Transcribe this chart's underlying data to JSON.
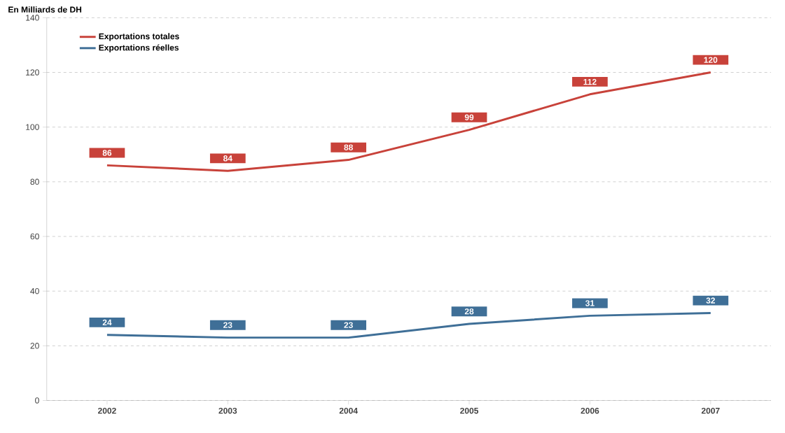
{
  "chart_data": {
    "type": "line",
    "ylabel": "En Milliards de DH",
    "categories": [
      "2002",
      "2003",
      "2004",
      "2005",
      "2006",
      "2007"
    ],
    "series": [
      {
        "name": "Exportations totales",
        "color": "#c8423a",
        "values": [
          86,
          84,
          88,
          99,
          112,
          120
        ]
      },
      {
        "name": "Exportations réelles",
        "color": "#3f6f97",
        "values": [
          24,
          23,
          23,
          28,
          31,
          32
        ]
      }
    ],
    "ylim": [
      0,
      140
    ],
    "yticks": [
      0,
      20,
      40,
      60,
      80,
      100,
      120,
      140
    ],
    "grid": "y",
    "legend": "top left",
    "marker": "none",
    "line_style": "solid",
    "data_labels": true
  }
}
